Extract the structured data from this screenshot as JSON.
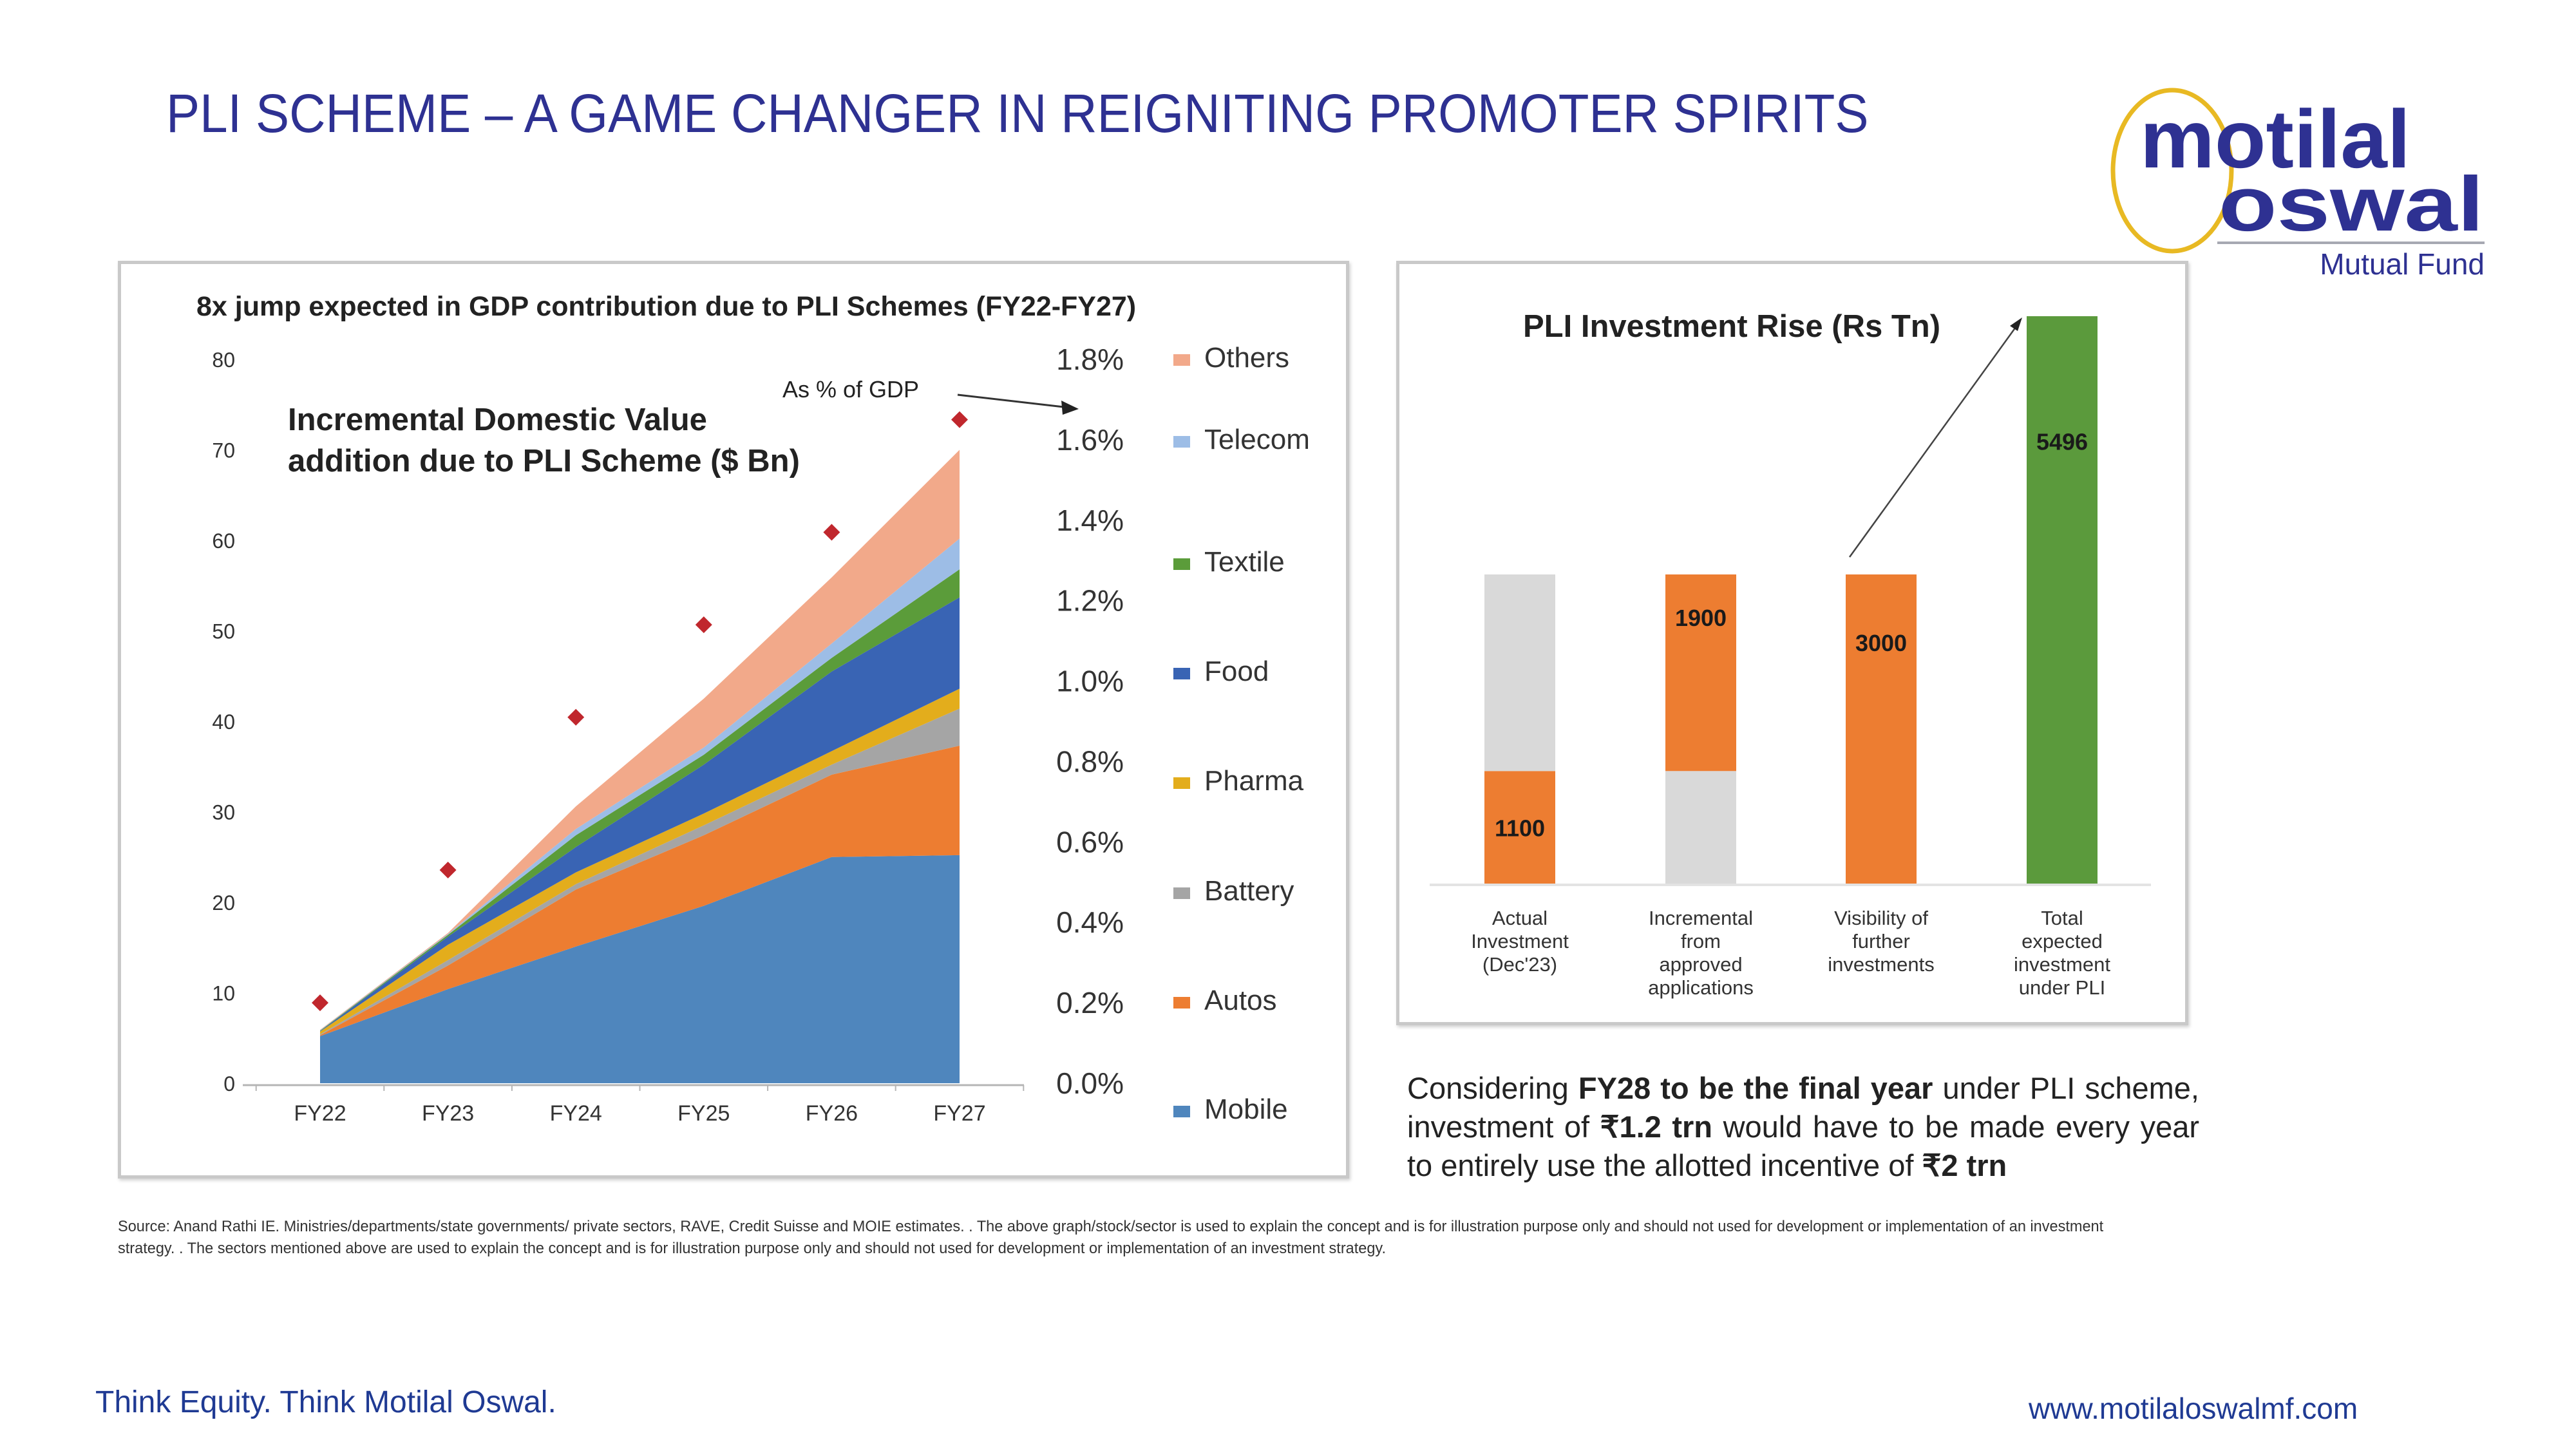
{
  "slide": {
    "title": "PLI SCHEME – A GAME CHANGER IN REIGNITING PROMOTER SPIRITS",
    "title_color": "#2e3192"
  },
  "logo": {
    "line1": "motilal",
    "line2": "oswal",
    "tagline": "Mutual Fund",
    "brand_color": "#2e3192",
    "ring_color": "#e8b923"
  },
  "paragraph": {
    "p1": "Considering ",
    "b1": "FY28 to be the final year",
    "p2": " under PLI scheme, investment of ",
    "b2": "₹1.2 trn",
    "p3": " would have to be made every year to entirely use the allotted incentive of ",
    "b3": "₹2 trn"
  },
  "source_note": "Source: Anand Rathi IE. Ministries/departments/state governments/ private sectors, RAVE, Credit Suisse and MOIE estimates. . The above graph/stock/sector is used to explain the concept and is for illustration purpose only and should not used for development or implementation of an investment strategy. . The sectors mentioned above are used to explain the concept and is for illustration purpose only and should not used for development or implementation of an investment strategy.",
  "footer": {
    "tagline": "Think Equity. Think Motilal Oswal.",
    "website": "www.motilaloswalmf.com"
  },
  "chart_data": [
    {
      "type": "area",
      "stacked": true,
      "title": "8x jump expected in GDP contribution due to PLI Schemes (FY22-FY27)",
      "subtitle": "Incremental Domestic Value addition due to PLI Scheme ($ Bn)",
      "annotation": "As % of GDP",
      "x": [
        "FY22",
        "FY23",
        "FY24",
        "FY25",
        "FY26",
        "FY27"
      ],
      "ylim": [
        0,
        80
      ],
      "yticks": [
        "0",
        "10",
        "20",
        "30",
        "40",
        "50",
        "60",
        "70",
        "80"
      ],
      "y2lim": [
        0,
        1.8
      ],
      "y2ticks": [
        "0.0%",
        "0.2%",
        "0.4%",
        "0.6%",
        "0.8%",
        "1.0%",
        "1.2%",
        "1.4%",
        "1.6%",
        "1.8%"
      ],
      "grid": false,
      "legend_position": "right",
      "series": [
        {
          "name": "Mobile",
          "color": "#4f86bd",
          "values": [
            5.2,
            10.4,
            15.1,
            19.6,
            25.0,
            25.2
          ]
        },
        {
          "name": "Autos",
          "color": "#ed7d31",
          "values": [
            0.1,
            2.6,
            6.3,
            7.8,
            9.1,
            12.1
          ]
        },
        {
          "name": "Battery",
          "color": "#a5a5a5",
          "values": [
            0.1,
            0.6,
            0.6,
            1.1,
            1.1,
            4.1
          ]
        },
        {
          "name": "Pharma",
          "color": "#e3ad1c",
          "values": [
            0.3,
            1.7,
            1.3,
            1.3,
            1.5,
            2.2
          ]
        },
        {
          "name": "Food",
          "color": "#3964b4",
          "values": [
            0.05,
            0.9,
            2.8,
            5.4,
            8.8,
            10.1
          ]
        },
        {
          "name": "Textile",
          "color": "#5b9c3a",
          "values": [
            0.05,
            0.2,
            1.3,
            1.1,
            1.5,
            3.1
          ]
        },
        {
          "name": "Telecom",
          "color": "#9dbde6",
          "values": [
            0.05,
            0.1,
            0.7,
            0.8,
            1.6,
            3.4
          ]
        },
        {
          "name": "Others",
          "color": "#f2a98a",
          "values": [
            0.05,
            0.1,
            2.5,
            5.4,
            7.3,
            9.8
          ]
        }
      ],
      "markers": {
        "name": "As % of GDP",
        "color": "#c0272d",
        "shape": "diamond",
        "axis": "secondary",
        "values_pct": [
          0.2,
          0.53,
          0.91,
          1.14,
          1.37,
          1.65
        ]
      },
      "legend_order": [
        "Others",
        "Telecom",
        "Textile",
        "Food",
        "Pharma",
        "Battery",
        "Autos",
        "Mobile"
      ]
    },
    {
      "type": "bar",
      "stacked": true,
      "waterfall": true,
      "title": "PLI Investment Rise (Rs Tn)",
      "categories": [
        "Actual Investment (Dec'23)",
        "Incremental from approved applications",
        "Visibility of further investments",
        "Total expected investment under PLI"
      ],
      "category_lines": [
        [
          "Actual",
          "Investment",
          "(Dec'23)"
        ],
        [
          "Incremental",
          "from",
          "approved",
          "applications"
        ],
        [
          "Visibility of",
          "further",
          "investments"
        ],
        [
          "Total",
          "expected",
          "investment",
          "under PLI"
        ]
      ],
      "series": [
        {
          "name": "base",
          "color": "#d9d9d9",
          "values": [
            0,
            1100,
            0,
            0
          ]
        },
        {
          "name": "value",
          "color": "#ed7d31",
          "values": [
            1100,
            1900,
            3000,
            0
          ]
        },
        {
          "name": "top",
          "color": "#d9d9d9",
          "values": [
            1900,
            0,
            0,
            0
          ]
        },
        {
          "name": "total",
          "color": "#5b9a3c",
          "values": [
            0,
            0,
            0,
            5496
          ]
        }
      ],
      "data_labels": [
        "1100",
        "1900",
        "3000",
        "5496"
      ],
      "ylim": [
        0,
        5496
      ],
      "grid": false
    }
  ]
}
